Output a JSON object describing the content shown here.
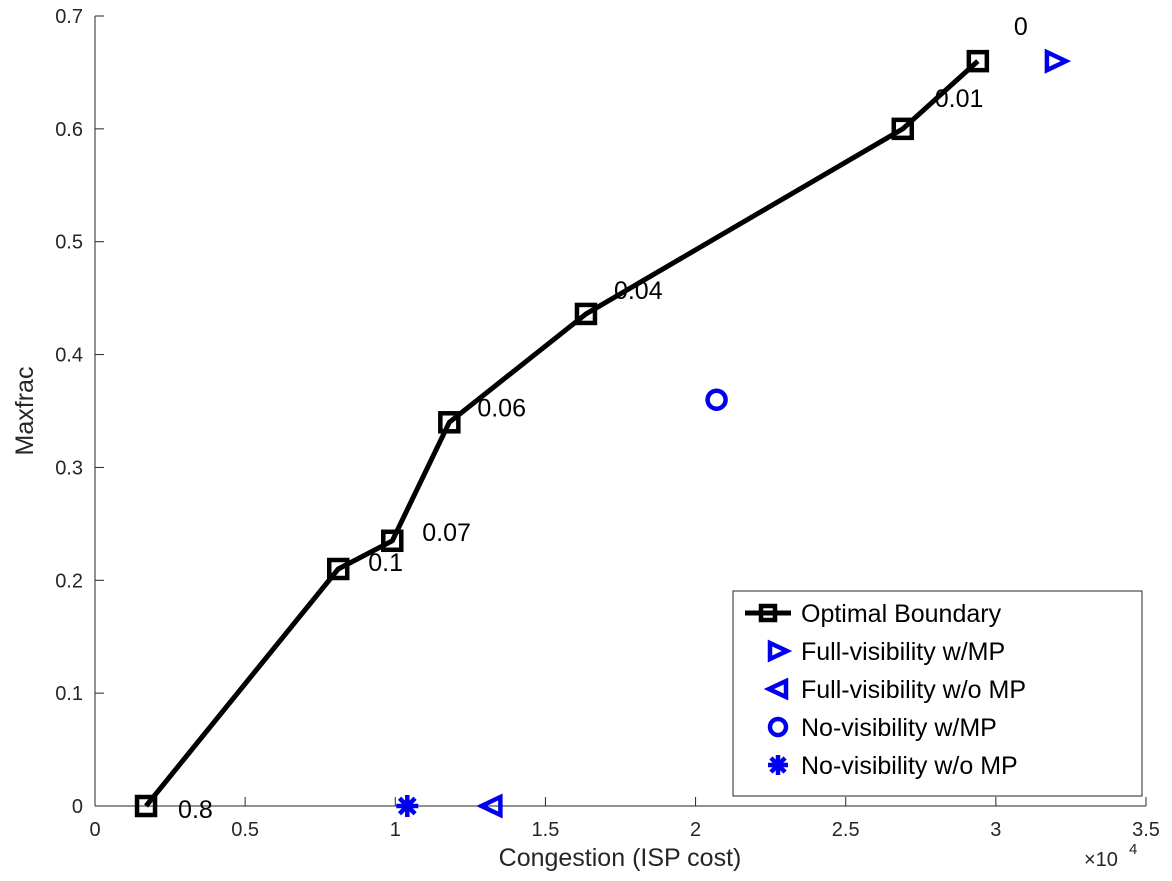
{
  "chart_data": {
    "type": "line",
    "xlabel": "Congestion (ISP cost)",
    "ylabel": "Maxfrac",
    "x_exponent_label": {
      "base": "×10",
      "exponent": "4"
    },
    "xlim": [
      0,
      3.5
    ],
    "ylim": [
      0,
      0.7
    ],
    "x_ticks": [
      0,
      0.5,
      1,
      1.5,
      2,
      2.5,
      3,
      3.5
    ],
    "x_tick_labels": [
      "0",
      "0.5",
      "1",
      "1.5",
      "2",
      "2.5",
      "3",
      "3.5"
    ],
    "y_ticks": [
      0,
      0.1,
      0.2,
      0.3,
      0.4,
      0.5,
      0.6,
      0.7
    ],
    "y_tick_labels": [
      "0",
      "0.1",
      "0.2",
      "0.3",
      "0.4",
      "0.5",
      "0.6",
      "0.7"
    ],
    "grid": false,
    "legend_position": "bottom-right",
    "series": [
      {
        "name": "Optimal Boundary",
        "marker": "square",
        "color": "#000000",
        "x": [
          0.17,
          0.81,
          0.99,
          1.18,
          1.635,
          2.69,
          2.94
        ],
        "y": [
          0.0,
          0.21,
          0.235,
          0.34,
          0.436,
          0.6,
          0.66
        ],
        "point_labels": [
          "0.8",
          "0.1",
          "0.07",
          "0.06",
          "0.04",
          "0.01",
          "0"
        ]
      },
      {
        "name": "Full-visibility w/MP",
        "marker": "triangle-right",
        "color": "#0000ee",
        "x": [
          3.2
        ],
        "y": [
          0.66
        ]
      },
      {
        "name": "Full-visibility w/o MP",
        "marker": "triangle-left",
        "color": "#0000ee",
        "x": [
          1.32
        ],
        "y": [
          0.0
        ]
      },
      {
        "name": "No-visibility w/MP",
        "marker": "circle",
        "color": "#0000ee",
        "x": [
          2.07
        ],
        "y": [
          0.36
        ]
      },
      {
        "name": "No-visibility w/o MP",
        "marker": "asterisk",
        "color": "#0000ee",
        "x": [
          1.04
        ],
        "y": [
          0.0
        ]
      }
    ]
  }
}
